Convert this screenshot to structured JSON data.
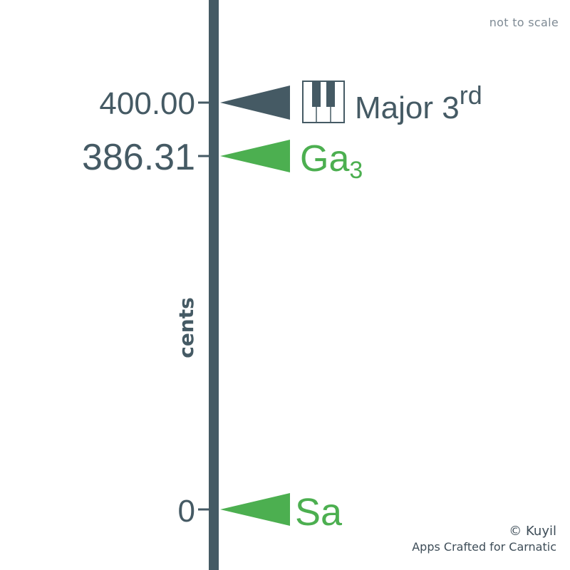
{
  "note": "not to scale",
  "axis_label": "cents",
  "credits": {
    "line1": "© Kuyil",
    "line2": "Apps Crafted for Carnatic"
  },
  "colors": {
    "axis": "#455a64",
    "reference": "#455a64",
    "swara": "#4caf50"
  },
  "markers": [
    {
      "value_text": "400.00",
      "name": "Major 3",
      "sup": "rd",
      "sub": "",
      "kind": "reference",
      "icon": "piano-icon"
    },
    {
      "value_text": "386.31",
      "name": "Ga",
      "sup": "",
      "sub": "3",
      "kind": "swara",
      "icon": ""
    },
    {
      "value_text": "0",
      "name": "Sa",
      "sup": "",
      "sub": "",
      "kind": "swara",
      "icon": ""
    }
  ]
}
